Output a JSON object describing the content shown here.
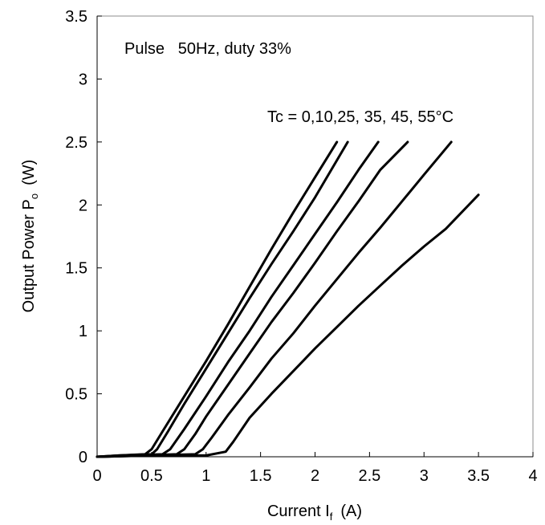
{
  "chart_data": {
    "type": "line",
    "xlabel": {
      "main": "Current I",
      "sub": "f",
      "unit": "(A)"
    },
    "ylabel": {
      "main": "Output Power P",
      "sub": "o",
      "unit": "(W)"
    },
    "xlim": [
      0,
      4
    ],
    "ylim": [
      0,
      3.5
    ],
    "xticks": [
      0,
      0.5,
      1,
      1.5,
      2,
      2.5,
      3,
      3.5,
      4
    ],
    "yticks": [
      0,
      0.5,
      1,
      1.5,
      2,
      2.5,
      3,
      3.5
    ],
    "xtick_labels": [
      "0",
      "0.5",
      "1",
      "1.5",
      "2",
      "2.5",
      "3",
      "3.5",
      "4"
    ],
    "ytick_labels": [
      "0",
      "0.5",
      "1",
      "1.5",
      "2",
      "2.5",
      "3",
      "3.5"
    ],
    "grid": false,
    "line_color": "#000000",
    "annotations": [
      {
        "text": "Pulse   50Hz, duty 33%",
        "x": 0.25,
        "y": 3.24
      },
      {
        "text": "Tc = 0,10,25, 35, 45, 55°C",
        "x": 1.56,
        "y": 2.67
      }
    ],
    "series": [
      {
        "x": [
          0,
          0.2,
          0.44,
          0.5,
          0.6,
          0.8,
          1.0,
          1.2,
          1.4,
          1.6,
          1.8,
          2.0,
          2.2
        ],
        "y": [
          0,
          0.01,
          0.02,
          0.06,
          0.2,
          0.48,
          0.76,
          1.05,
          1.35,
          1.65,
          1.94,
          2.22,
          2.5
        ]
      },
      {
        "x": [
          0,
          0.2,
          0.5,
          0.55,
          0.65,
          0.8,
          1.0,
          1.2,
          1.4,
          1.6,
          1.8,
          2.0,
          2.3
        ],
        "y": [
          0,
          0.01,
          0.02,
          0.06,
          0.2,
          0.42,
          0.7,
          0.98,
          1.26,
          1.53,
          1.79,
          2.06,
          2.5
        ]
      },
      {
        "x": [
          0,
          0.3,
          0.6,
          0.67,
          0.8,
          1.0,
          1.2,
          1.4,
          1.6,
          1.8,
          2.0,
          2.2,
          2.4,
          2.58
        ],
        "y": [
          0,
          0.01,
          0.02,
          0.06,
          0.22,
          0.48,
          0.75,
          1.0,
          1.27,
          1.52,
          1.77,
          2.02,
          2.28,
          2.5
        ]
      },
      {
        "x": [
          0,
          0.4,
          0.73,
          0.8,
          0.9,
          1.0,
          1.2,
          1.4,
          1.6,
          1.8,
          2.0,
          2.2,
          2.4,
          2.6,
          2.85
        ],
        "y": [
          0,
          0.01,
          0.02,
          0.06,
          0.18,
          0.32,
          0.57,
          0.82,
          1.07,
          1.3,
          1.54,
          1.79,
          2.03,
          2.28,
          2.5
        ]
      },
      {
        "x": [
          0,
          0.5,
          0.9,
          0.97,
          1.05,
          1.2,
          1.4,
          1.6,
          1.8,
          2.0,
          2.2,
          2.4,
          2.6,
          2.8,
          3.0,
          3.25
        ],
        "y": [
          0,
          0.01,
          0.02,
          0.06,
          0.15,
          0.33,
          0.55,
          0.78,
          0.98,
          1.2,
          1.41,
          1.62,
          1.82,
          2.03,
          2.24,
          2.5
        ]
      },
      {
        "x": [
          0,
          0.5,
          1.0,
          1.18,
          1.25,
          1.4,
          1.6,
          1.8,
          2.0,
          2.2,
          2.4,
          2.6,
          2.8,
          3.0,
          3.2,
          3.5
        ],
        "y": [
          0,
          0.01,
          0.01,
          0.04,
          0.12,
          0.31,
          0.5,
          0.68,
          0.86,
          1.03,
          1.2,
          1.36,
          1.52,
          1.67,
          1.81,
          2.08
        ]
      }
    ]
  }
}
